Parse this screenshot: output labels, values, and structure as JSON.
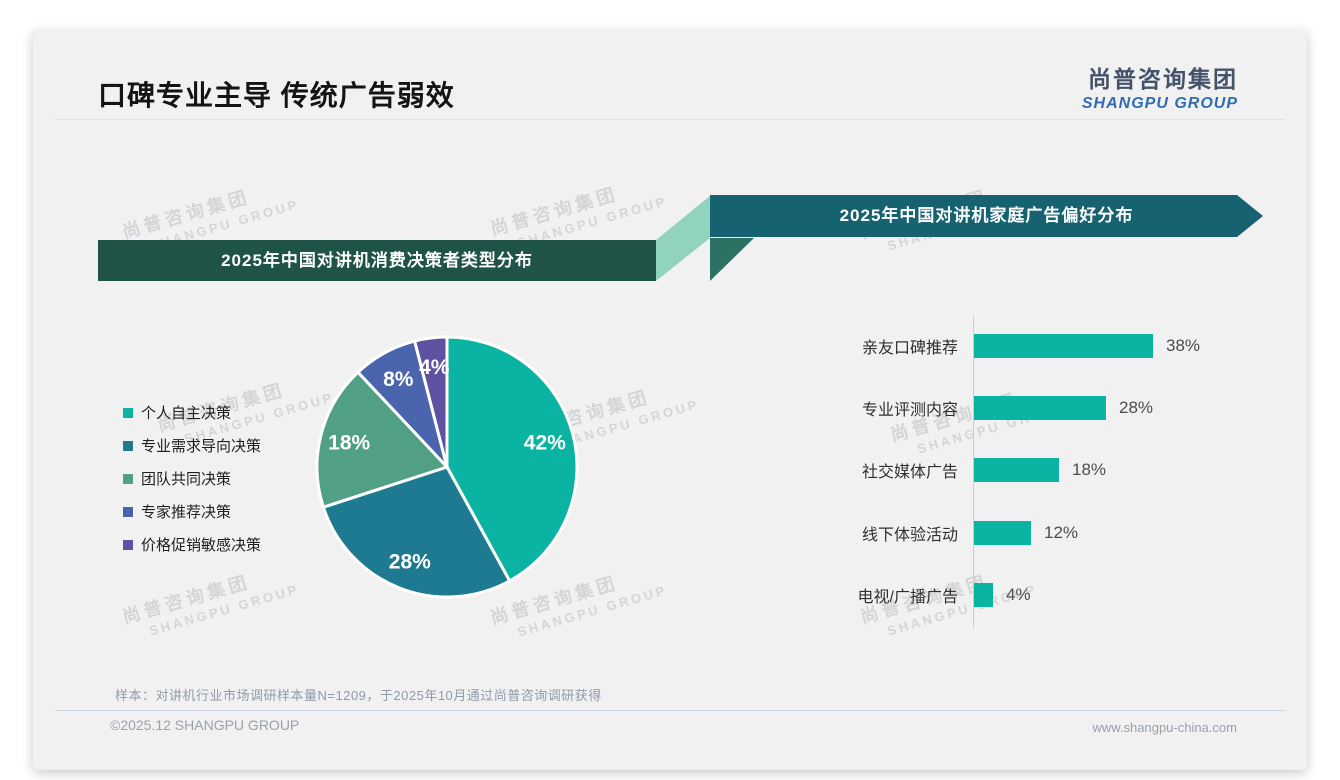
{
  "page": {
    "title": "口碑专业主导 传统广告弱效",
    "logo": {
      "cn": "尚普咨询集团",
      "en": "SHANGPU GROUP"
    },
    "watermark": {
      "cn": "尚普咨询集团",
      "en": "SHANGPU GROUP"
    },
    "footnote": "样本：对讲机行业市场调研样本量N=1209，于2025年10月通过尚普咨询调研获得",
    "footer": {
      "copyright": "©2025.12 SHANGPU GROUP",
      "website": "www.shangpu-china.com"
    }
  },
  "colors": {
    "accent_teal": "#0bb4a2",
    "banner_left_bg": "#1f5348",
    "banner_right_bg": "#176271",
    "connector_mint": "#92d3c0",
    "connector_fold": "#2c7163",
    "logo_en_blue": "#2f6cb3",
    "card_bg": "#f1f1f2"
  },
  "chart_data": [
    {
      "type": "pie",
      "title": "2025年中国对讲机消费决策者类型分布",
      "labels": [
        "个人自主决策",
        "专业需求导向决策",
        "团队共同决策",
        "专家推荐决策",
        "价格促销敏感决策"
      ],
      "values": [
        42,
        28,
        18,
        8,
        4
      ],
      "data_labels": [
        "42%",
        "28%",
        "18%",
        "8%",
        "4%"
      ],
      "colors": [
        "#0bb4a2",
        "#1e7a90",
        "#519f84",
        "#4a64ae",
        "#5e51a1"
      ],
      "legend_position": "left",
      "start_angle_deg": 0,
      "direction": "clockwise"
    },
    {
      "type": "bar",
      "title": "2025年中国对讲机家庭广告偏好分布",
      "orientation": "horizontal",
      "categories": [
        "亲友口碑推荐",
        "专业评测内容",
        "社交媒体广告",
        "线下体验活动",
        "电视/广播广告"
      ],
      "values": [
        38,
        28,
        18,
        12,
        4
      ],
      "value_labels": [
        "38%",
        "28%",
        "18%",
        "12%",
        "4%"
      ],
      "bar_color": "#0bb4a2",
      "xlim": [
        0,
        42
      ],
      "grid": false
    }
  ]
}
